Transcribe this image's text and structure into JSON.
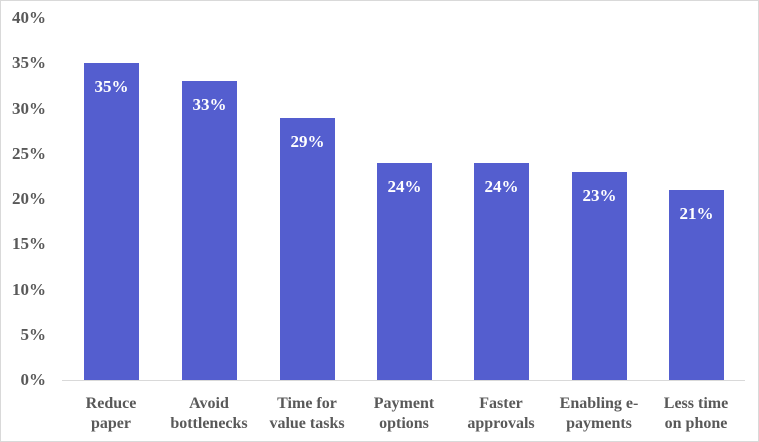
{
  "chart_data": {
    "type": "bar",
    "title": "",
    "xlabel": "",
    "ylabel": "",
    "categories": [
      "Reduce paper",
      "Avoid bottlenecks",
      "Time for value tasks",
      "Payment options",
      "Faster approvals",
      "Enabling e-payments",
      "Less time on phone"
    ],
    "category_lines": [
      [
        "Reduce",
        "paper"
      ],
      [
        "Avoid",
        "bottlenecks"
      ],
      [
        "Time for",
        "value tasks"
      ],
      [
        "Payment",
        "options"
      ],
      [
        "Faster",
        "approvals"
      ],
      [
        "Enabling e-",
        "payments"
      ],
      [
        "Less time",
        "on phone"
      ]
    ],
    "values": [
      35,
      33,
      29,
      24,
      24,
      23,
      21
    ],
    "value_labels": [
      "35%",
      "33%",
      "29%",
      "24%",
      "24%",
      "23%",
      "21%"
    ],
    "ylim": [
      0,
      40
    ],
    "yticks": [
      0,
      5,
      10,
      15,
      20,
      25,
      30,
      35,
      40
    ],
    "ytick_labels": [
      "0%",
      "5%",
      "10%",
      "15%",
      "20%",
      "25%",
      "30%",
      "35%",
      "40%"
    ],
    "grid": false,
    "legend": "none",
    "bar_color": "#545ECF",
    "text_color": "#595959",
    "label_color": "#FFFFFF"
  }
}
